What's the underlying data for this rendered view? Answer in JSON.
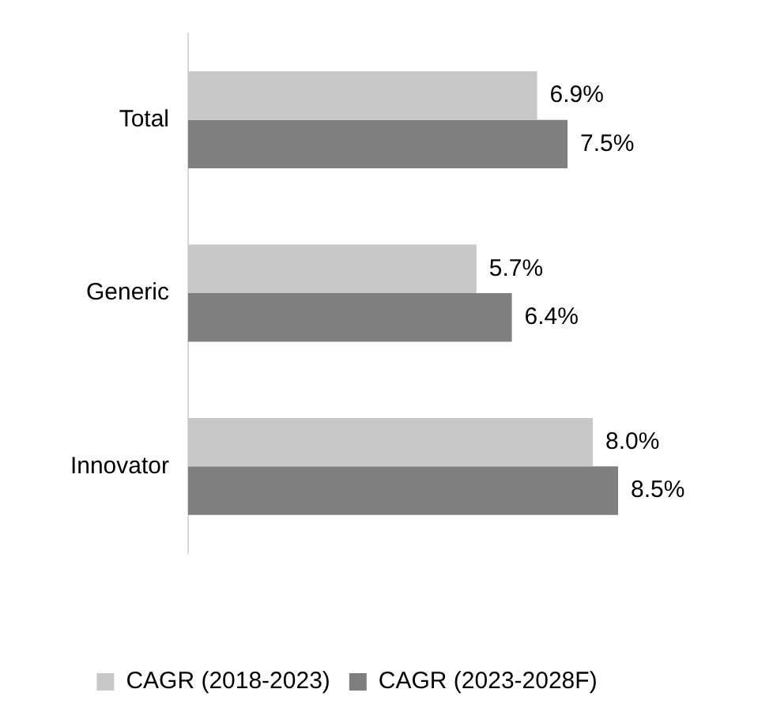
{
  "chart_data": {
    "type": "bar",
    "orientation": "horizontal",
    "categories": [
      "Total",
      "Generic",
      "Innovator"
    ],
    "series": [
      {
        "name": "CAGR (2018-2023)",
        "color": "#c8c8c8",
        "values": [
          6.9,
          5.7,
          8.0
        ],
        "value_labels": [
          "6.9%",
          "5.7%",
          "8.0%"
        ]
      },
      {
        "name": "CAGR (2023-2028F)",
        "color": "#7f7f7f",
        "values": [
          7.5,
          6.4,
          8.5
        ],
        "value_labels": [
          "7.5%",
          "6.4%",
          "8.5%"
        ]
      }
    ],
    "tick_labels": "y",
    "grid": false,
    "legend": "bottom"
  }
}
